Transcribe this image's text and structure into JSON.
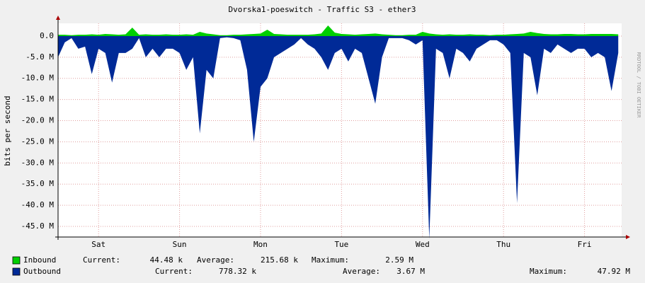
{
  "chart_data": {
    "type": "area",
    "title": "Dvorska1-poeswitch - Traffic S3 - ether3",
    "y_label": "bits per second",
    "side_label": "RRDTOOL / TOBI OETIKER",
    "grid": true,
    "xlim": [
      0,
      167
    ],
    "xticks": [
      {
        "value": 12,
        "label": "Sat"
      },
      {
        "value": 36,
        "label": "Sun"
      },
      {
        "value": 60,
        "label": "Mon"
      },
      {
        "value": 84,
        "label": "Tue"
      },
      {
        "value": 108,
        "label": "Wed"
      },
      {
        "value": 132,
        "label": "Thu"
      },
      {
        "value": 156,
        "label": "Fri"
      }
    ],
    "ylim": [
      -47500000,
      3000000
    ],
    "yticks": [
      {
        "value": 0,
        "label": "0.0"
      },
      {
        "value": -5000000,
        "label": "-5.0 M"
      },
      {
        "value": -10000000,
        "label": "-10.0 M"
      },
      {
        "value": -15000000,
        "label": "-15.0 M"
      },
      {
        "value": -20000000,
        "label": "-20.0 M"
      },
      {
        "value": -25000000,
        "label": "-25.0 M"
      },
      {
        "value": -30000000,
        "label": "-30.0 M"
      },
      {
        "value": -35000000,
        "label": "-35.0 M"
      },
      {
        "value": -40000000,
        "label": "-40.0 M"
      },
      {
        "value": -45000000,
        "label": "-45.0 M"
      }
    ],
    "x": [
      0,
      2,
      4,
      6,
      8,
      10,
      12,
      14,
      16,
      18,
      20,
      22,
      24,
      26,
      28,
      30,
      32,
      34,
      36,
      38,
      40,
      42,
      44,
      46,
      48,
      50,
      52,
      54,
      56,
      58,
      60,
      62,
      64,
      66,
      68,
      70,
      72,
      74,
      76,
      78,
      80,
      82,
      84,
      86,
      88,
      90,
      92,
      94,
      96,
      98,
      100,
      102,
      104,
      106,
      108,
      110,
      112,
      114,
      116,
      118,
      120,
      122,
      124,
      126,
      128,
      130,
      132,
      134,
      136,
      138,
      140,
      142,
      144,
      146,
      148,
      150,
      152,
      154,
      156,
      158,
      160,
      162,
      164,
      166
    ],
    "series": [
      {
        "name": "Inbound",
        "color": "#00cf00",
        "values": [
          300000,
          300000,
          200000,
          300000,
          300000,
          400000,
          300000,
          500000,
          400000,
          300000,
          400000,
          2000000,
          300000,
          400000,
          300000,
          300000,
          400000,
          300000,
          300000,
          400000,
          300000,
          1000000,
          600000,
          400000,
          200000,
          200000,
          300000,
          300000,
          400000,
          500000,
          600000,
          1500000,
          500000,
          400000,
          300000,
          300000,
          300000,
          300000,
          400000,
          600000,
          2500000,
          800000,
          500000,
          400000,
          300000,
          400000,
          500000,
          600000,
          400000,
          300000,
          200000,
          200000,
          300000,
          300000,
          1000000,
          600000,
          400000,
          300000,
          400000,
          300000,
          300000,
          400000,
          300000,
          300000,
          200000,
          300000,
          300000,
          400000,
          500000,
          600000,
          1000000,
          700000,
          500000,
          400000,
          400000,
          500000,
          500000,
          400000,
          400000,
          500000,
          500000,
          500000,
          500000,
          400000
        ],
        "stats": [
          {
            "label": "Current:",
            "value": "44.48 k"
          },
          {
            "label": "Average:",
            "value": "215.68 k"
          },
          {
            "label": "Maximum:",
            "value": "2.59 M"
          }
        ]
      },
      {
        "name": "Outbound",
        "color": "#002a97",
        "values": [
          -5000000,
          -1500000,
          -500000,
          -3000000,
          -2500000,
          -9000000,
          -3000000,
          -4000000,
          -11000000,
          -4000000,
          -4000000,
          -3000000,
          -500000,
          -5000000,
          -3000000,
          -5000000,
          -3000000,
          -3000000,
          -4000000,
          -8000000,
          -5000000,
          -23000000,
          -8000000,
          -10000000,
          -500000,
          -300000,
          -500000,
          -1000000,
          -8000000,
          -25000000,
          -12000000,
          -10000000,
          -5000000,
          -4000000,
          -3000000,
          -2000000,
          -500000,
          -2000000,
          -3000000,
          -5000000,
          -8000000,
          -4000000,
          -3000000,
          -6000000,
          -3000000,
          -4000000,
          -10000000,
          -16000000,
          -5000000,
          -500000,
          -500000,
          -500000,
          -1000000,
          -2000000,
          -1000000,
          -47920000,
          -3000000,
          -4000000,
          -10000000,
          -3000000,
          -4000000,
          -6000000,
          -3000000,
          -2000000,
          -1000000,
          -1000000,
          -2000000,
          -4000000,
          -39500000,
          -4000000,
          -5000000,
          -14000000,
          -3000000,
          -4000000,
          -2000000,
          -3000000,
          -4000000,
          -3000000,
          -3000000,
          -5000000,
          -4000000,
          -5000000,
          -13000000,
          -4000000
        ],
        "stats": [
          {
            "label": "Current:",
            "value": "778.32 k"
          },
          {
            "label": "Average:",
            "value": "3.67 M"
          },
          {
            "label": "Maximum:",
            "value": "47.92 M"
          }
        ]
      }
    ]
  }
}
